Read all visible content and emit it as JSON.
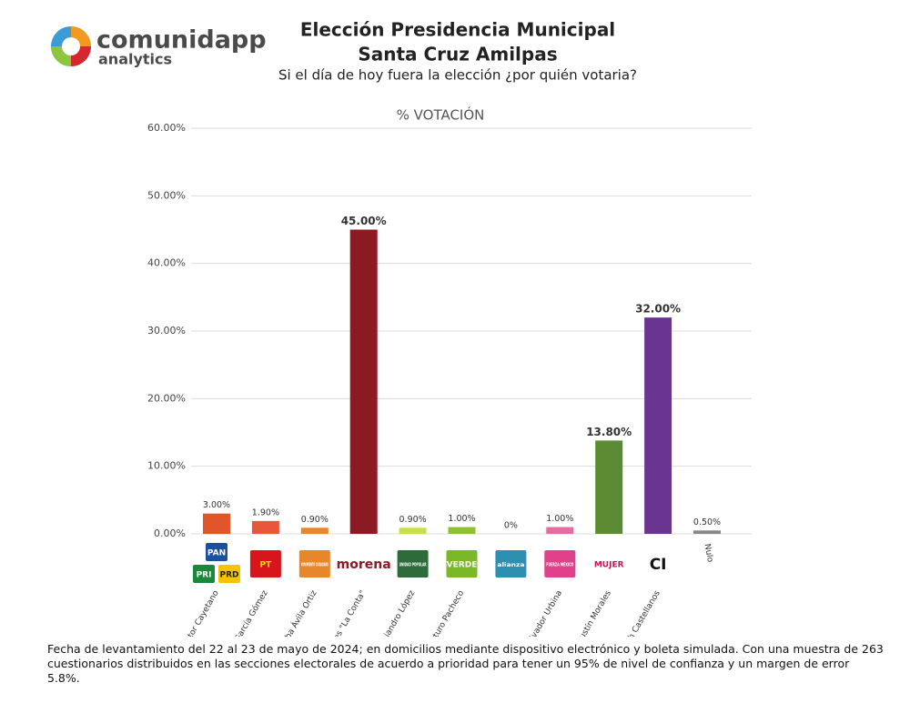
{
  "brand": {
    "name": "comunidapp",
    "tagline": "analytics"
  },
  "chart_data": {
    "type": "bar",
    "title_lines": [
      "Elección Presidencia Municipal",
      "Santa Cruz Amilpas"
    ],
    "subtitle": "Si el día de hoy fuera la elección ¿por quién votaria?",
    "axis_title": "% VOTACIÓN",
    "categories": [
      "Victor Cayetano",
      "Rosalinda García Gómez",
      "Columba Ávila Ortiz",
      "Paola Morales \"La Conta\"",
      "Alejandro López",
      "Arturo Pacheco",
      null,
      "Cristián salvador Urbina",
      "Agustín Morales",
      "Christián Baruch Castellanos",
      "Nulo"
    ],
    "values": [
      3,
      1.9,
      0.9,
      45,
      0.9,
      1,
      0,
      1,
      13.8,
      32,
      0.5
    ],
    "value_labels": [
      "3.00%",
      "1.90%",
      "0.90%",
      "45.00%",
      "0.90%",
      "1.00%",
      "0%",
      "1.00%",
      "13.80%",
      "32.00%",
      "0.50%"
    ],
    "colors": [
      "#e0552a",
      "#e8573a",
      "#e8862a",
      "#8b1a22",
      "#c9df4a",
      "#8fc12e",
      "#2f8fb0",
      "#e96aa0",
      "#5a8a32",
      "#6a3590",
      "#888888"
    ],
    "ylim": [
      0,
      60
    ],
    "yticks": [
      {
        "value": 0,
        "label": "0.00%"
      },
      {
        "value": 10,
        "label": "10.00%"
      },
      {
        "value": 20,
        "label": "20.00%"
      },
      {
        "value": 30,
        "label": "30.00%"
      },
      {
        "value": 40,
        "label": "40.00%"
      },
      {
        "value": 50,
        "label": "50.00%"
      },
      {
        "value": 60,
        "label": "60.00%"
      }
    ],
    "grid": true,
    "logos": [
      [
        {
          "text": "PAN",
          "bg": "#1c4fa0",
          "fg": "#ffffff"
        },
        {
          "text": "PRI",
          "bg": "#1a8a3a",
          "fg": "#ffffff"
        },
        {
          "text": "PRD",
          "bg": "#f5c400",
          "fg": "#222222"
        }
      ],
      [
        {
          "text": "PT",
          "bg": "#d8141c",
          "fg": "#f5e000"
        }
      ],
      [
        {
          "text": "MOVIMIENTO CIUDADANO",
          "bg": "#e8862a",
          "fg": "#ffffff"
        }
      ],
      [
        {
          "text": "morena",
          "bg": "none",
          "fg": "#8b1a22"
        }
      ],
      [
        {
          "text": "UNIDAD POPULAR",
          "bg": "#2e6b3a",
          "fg": "#ffffff"
        }
      ],
      [
        {
          "text": "VERDE",
          "bg": "#7ab828",
          "fg": "#ffffff"
        }
      ],
      [
        {
          "text": "alianza",
          "bg": "#2f8fb0",
          "fg": "#ffffff"
        }
      ],
      [
        {
          "text": "FUERZA MÉXICO",
          "bg": "#e0418a",
          "fg": "#ffffff"
        }
      ],
      [
        {
          "text": "MUJER",
          "bg": "none",
          "fg": "#c2185b"
        }
      ],
      [
        {
          "text": "CI",
          "bg": "none",
          "fg": "#111111"
        }
      ],
      []
    ],
    "note": "Fecha de levantamiento del 22 al 23 de mayo de 2024; en domicilios mediante dispositivo electrónico y boleta simulada. Con una muestra de 263 cuestionarios distribuidos en las secciones electorales de acuerdo a prioridad para tener un 95% de nivel de confianza y un margen de error 5.8%."
  }
}
